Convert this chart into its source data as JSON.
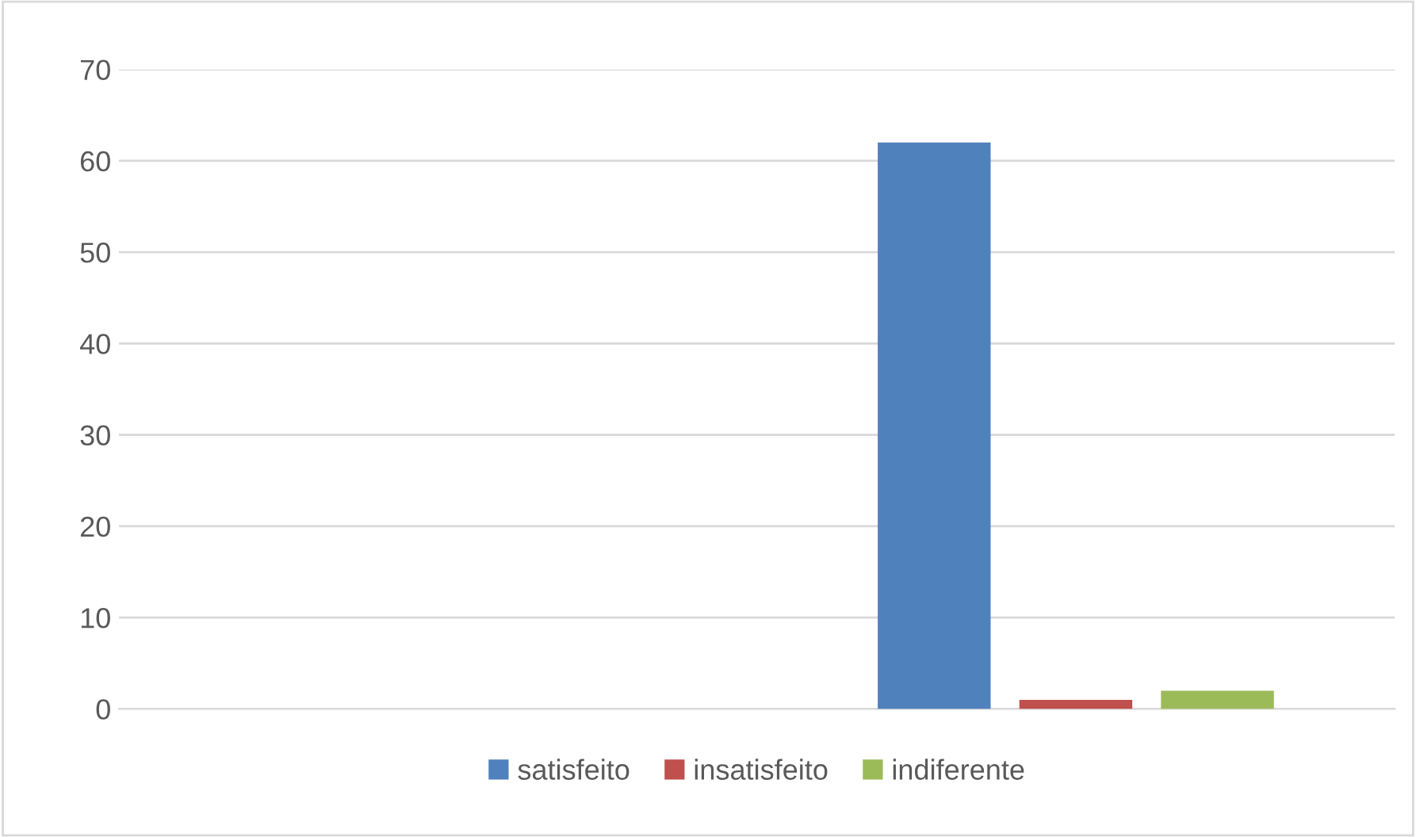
{
  "chart_data": {
    "type": "bar",
    "categories": [
      null,
      null
    ],
    "series": [
      {
        "name": "satisfeito",
        "color": "#4f81bd",
        "values": [
          null,
          62
        ]
      },
      {
        "name": "insatisfeito",
        "color": "#c0504d",
        "values": [
          null,
          1
        ]
      },
      {
        "name": "indiferente",
        "color": "#9bbb59",
        "values": [
          null,
          2
        ]
      }
    ],
    "ylim": [
      0,
      70
    ],
    "yticks": [
      0,
      10,
      20,
      30,
      40,
      50,
      60,
      70
    ],
    "grid": "y",
    "legend": "bottom",
    "tick_labels": "y"
  }
}
